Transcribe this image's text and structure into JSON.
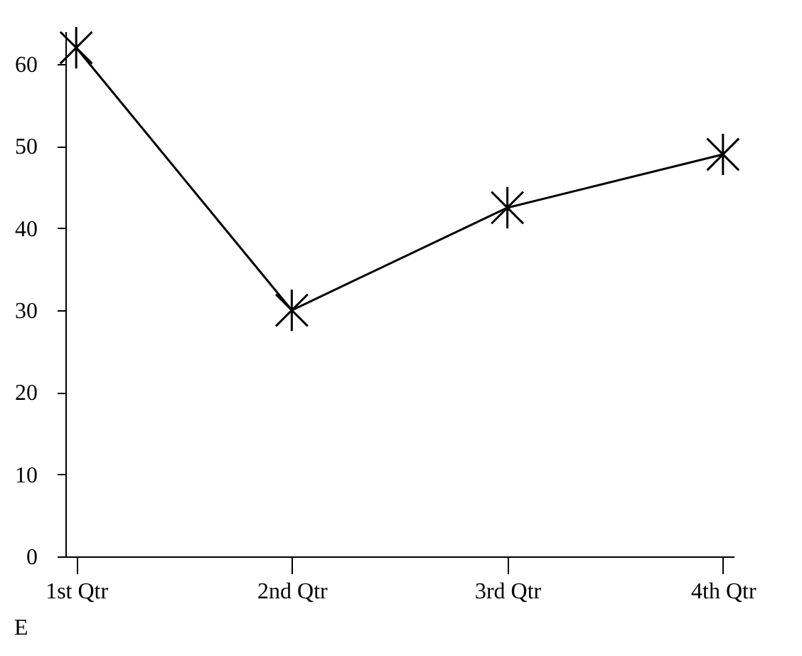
{
  "chart_data": {
    "type": "line",
    "categories": [
      "1st Qtr",
      "2nd Qtr",
      "3rd Qtr",
      "4th Qtr"
    ],
    "series": [
      {
        "color": "#000000",
        "values": [
          62,
          30,
          42.5,
          49
        ]
      }
    ],
    "ylim": [
      0,
      64
    ],
    "yticks": [
      0,
      10,
      20,
      30,
      40,
      50,
      60
    ],
    "grid": false,
    "marker": "cross",
    "line_style": "solid",
    "annotations": [
      "E"
    ]
  }
}
